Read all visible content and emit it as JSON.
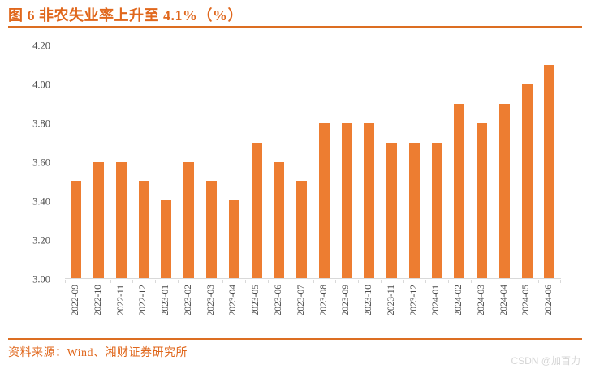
{
  "header": {
    "title": "图 6 非农失业率上升至 4.1%（%）"
  },
  "chart_data": {
    "type": "bar",
    "title": "图 6 非农失业率上升至 4.1%（%）",
    "categories": [
      "2022-09",
      "2022-10",
      "2022-11",
      "2022-12",
      "2023-01",
      "2023-02",
      "2023-03",
      "2023-04",
      "2023-05",
      "2023-06",
      "2023-07",
      "2023-08",
      "2023-09",
      "2023-10",
      "2023-11",
      "2023-12",
      "2024-01",
      "2024-02",
      "2024-03",
      "2024-04",
      "2024-05",
      "2024-06"
    ],
    "values": [
      3.5,
      3.6,
      3.6,
      3.5,
      3.4,
      3.6,
      3.5,
      3.4,
      3.7,
      3.6,
      3.5,
      3.8,
      3.8,
      3.8,
      3.7,
      3.7,
      3.7,
      3.9,
      3.8,
      3.9,
      4.0,
      4.1
    ],
    "xlabel": "",
    "ylabel": "",
    "ylim": [
      3.0,
      4.2
    ],
    "yticks": [
      "3.00",
      "3.20",
      "3.40",
      "3.60",
      "3.80",
      "4.00",
      "4.20"
    ],
    "grid": false,
    "legend_position": "none",
    "bar_color": "#ED7D31"
  },
  "footer": {
    "source": "资料来源：Wind、湘财证券研究所",
    "watermark": "CSDN @加百力"
  },
  "colors": {
    "accent": "#E0671C",
    "rule": "#DC6E22",
    "bar": "#ED7D31",
    "axis_text": "#4A4A4A",
    "axis_line": "#D9D9D9",
    "watermark_text": "#D5D5D5"
  }
}
